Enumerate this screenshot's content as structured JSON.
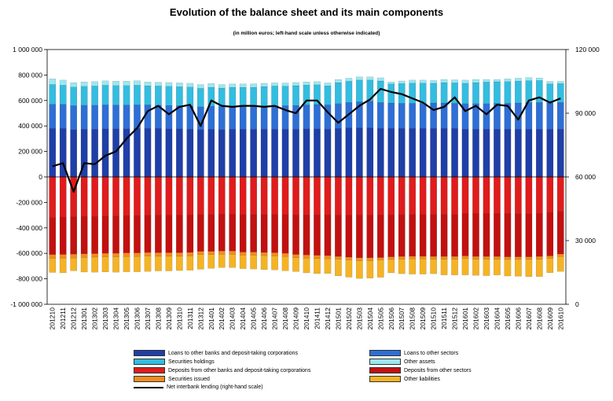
{
  "title": "Evolution of the balance sheet and its main components",
  "subtitle": "(in million euros; left-hand scale unless otherwise indicated)",
  "chart_data": {
    "type": "bar",
    "stacked": true,
    "categories": [
      "201210",
      "201211",
      "201212",
      "201301",
      "201302",
      "201303",
      "201304",
      "201305",
      "201306",
      "201307",
      "201308",
      "201309",
      "201310",
      "201311",
      "201312",
      "201401",
      "201402",
      "201403",
      "201404",
      "201405",
      "201406",
      "201407",
      "201408",
      "201409",
      "201410",
      "201411",
      "201412",
      "201501",
      "201502",
      "201503",
      "201504",
      "201505",
      "201506",
      "201507",
      "201508",
      "201509",
      "201510",
      "201511",
      "201512",
      "201601",
      "201602",
      "201603",
      "201604",
      "201605",
      "201606",
      "201607",
      "201608",
      "201609",
      "201610"
    ],
    "ylim": [
      -1000000,
      1000000
    ],
    "yticks": [
      "1 000 000",
      "800 000",
      "600 000",
      "400 000",
      "200 000",
      "0",
      "-200 000",
      "-400 000",
      "-600 000",
      "-800 000",
      "-1 000 000"
    ],
    "y2lim": [
      0,
      120000
    ],
    "y2ticks": [
      "120 000",
      "90 000",
      "60 000",
      "30 000",
      "0"
    ],
    "grid": false,
    "legend_position": "bottom",
    "series": [
      {
        "name": "Loans to other banks and deposit-taking  corporations",
        "color": "#1f3fa8",
        "stack": "assets",
        "values": [
          380000,
          380000,
          370000,
          375000,
          375000,
          378000,
          378000,
          378000,
          380000,
          380000,
          380000,
          378000,
          378000,
          375000,
          370000,
          375000,
          372000,
          375000,
          375000,
          375000,
          375000,
          375000,
          375000,
          375000,
          378000,
          378000,
          375000,
          380000,
          385000,
          385000,
          385000,
          380000,
          380000,
          380000,
          380000,
          380000,
          380000,
          380000,
          380000,
          375000,
          375000,
          375000,
          375000,
          375000,
          375000,
          375000,
          375000,
          375000,
          375000
        ]
      },
      {
        "name": "Loans to other sectors",
        "color": "#2e6fd6",
        "stack": "assets",
        "values": [
          190000,
          190000,
          190000,
          188000,
          188000,
          188000,
          186000,
          186000,
          185000,
          185000,
          183000,
          183000,
          182000,
          182000,
          180000,
          180000,
          180000,
          180000,
          180000,
          180000,
          182000,
          183000,
          185000,
          186000,
          188000,
          190000,
          190000,
          195000,
          200000,
          205000,
          210000,
          205000,
          200000,
          198000,
          198000,
          198000,
          200000,
          200000,
          198000,
          200000,
          200000,
          200000,
          202000,
          203000,
          205000,
          208000,
          210000,
          205000,
          210000
        ]
      },
      {
        "name": "Securities holdings",
        "color": "#33bde0",
        "stack": "assets",
        "values": [
          155000,
          150000,
          145000,
          148000,
          150000,
          153000,
          153000,
          153000,
          155000,
          150000,
          150000,
          150000,
          148000,
          148000,
          145000,
          148000,
          145000,
          148000,
          148000,
          148000,
          152000,
          155000,
          152000,
          155000,
          155000,
          155000,
          150000,
          165000,
          165000,
          170000,
          165000,
          168000,
          150000,
          155000,
          158000,
          158000,
          155000,
          160000,
          160000,
          160000,
          165000,
          170000,
          170000,
          170000,
          172000,
          172000,
          172000,
          150000,
          148000
        ]
      },
      {
        "name": "Other assets",
        "color": "#9ce7f0",
        "stack": "assets",
        "values": [
          45000,
          40000,
          35000,
          35000,
          35000,
          35000,
          35000,
          35000,
          35000,
          30000,
          30000,
          30000,
          30000,
          30000,
          30000,
          30000,
          28000,
          27000,
          27000,
          28000,
          26000,
          25000,
          25000,
          25000,
          25000,
          25000,
          23000,
          25000,
          25000,
          25000,
          25000,
          25000,
          15000,
          20000,
          24000,
          24000,
          22000,
          25000,
          24000,
          25000,
          25000,
          20000,
          18000,
          22000,
          23000,
          25000,
          20000,
          20000,
          17000
        ]
      },
      {
        "name": "Deposits from other banks and deposit-taking  corporations",
        "color": "#e01b1b",
        "stack": "liabilities",
        "values": [
          -320000,
          -318000,
          -315000,
          -312000,
          -310000,
          -308000,
          -308000,
          -305000,
          -305000,
          -302000,
          -300000,
          -300000,
          -300000,
          -298000,
          -295000,
          -295000,
          -292000,
          -292000,
          -295000,
          -295000,
          -295000,
          -295000,
          -295000,
          -298000,
          -298000,
          -298000,
          -298000,
          -300000,
          -300000,
          -300000,
          -300000,
          -298000,
          -298000,
          -295000,
          -295000,
          -295000,
          -295000,
          -295000,
          -295000,
          -290000,
          -290000,
          -290000,
          -290000,
          -290000,
          -288000,
          -288000,
          -285000,
          -280000,
          -270000
        ]
      },
      {
        "name": "Deposits from other sectors",
        "color": "#c21010",
        "stack": "liabilities",
        "values": [
          -290000,
          -290000,
          -292000,
          -292000,
          -292000,
          -292000,
          -292000,
          -292000,
          -292000,
          -292000,
          -295000,
          -295000,
          -295000,
          -295000,
          -290000,
          -290000,
          -290000,
          -290000,
          -295000,
          -295000,
          -298000,
          -300000,
          -305000,
          -310000,
          -315000,
          -318000,
          -320000,
          -325000,
          -330000,
          -335000,
          -335000,
          -335000,
          -330000,
          -330000,
          -328000,
          -328000,
          -330000,
          -330000,
          -330000,
          -330000,
          -335000,
          -335000,
          -335000,
          -338000,
          -340000,
          -340000,
          -340000,
          -340000,
          -335000
        ]
      },
      {
        "name": "Securities issued",
        "color": "#f28c1e",
        "stack": "liabilities",
        "values": [
          -30000,
          -30000,
          -30000,
          -28000,
          -28000,
          -28000,
          -28000,
          -28000,
          -28000,
          -28000,
          -28000,
          -28000,
          -28000,
          -28000,
          -25000,
          -25000,
          -25000,
          -25000,
          -25000,
          -25000,
          -25000,
          -25000,
          -25000,
          -25000,
          -25000,
          -25000,
          -25000,
          -22000,
          -22000,
          -22000,
          -22000,
          -20000,
          -20000,
          -20000,
          -20000,
          -20000,
          -20000,
          -20000,
          -20000,
          -20000,
          -20000,
          -20000,
          -20000,
          -20000,
          -20000,
          -20000,
          -20000,
          -20000,
          -20000
        ]
      },
      {
        "name": "Other liabilities",
        "color": "#f5b324",
        "stack": "liabilities",
        "values": [
          -110000,
          -115000,
          -100000,
          -115000,
          -118000,
          -118000,
          -120000,
          -120000,
          -120000,
          -120000,
          -115000,
          -115000,
          -112000,
          -112000,
          -115000,
          -108000,
          -105000,
          -105000,
          -105000,
          -108000,
          -110000,
          -110000,
          -112000,
          -110000,
          -115000,
          -118000,
          -115000,
          -130000,
          -135000,
          -140000,
          -138000,
          -135000,
          -105000,
          -115000,
          -120000,
          -120000,
          -115000,
          -125000,
          -125000,
          -130000,
          -128000,
          -130000,
          -125000,
          -130000,
          -132000,
          -135000,
          -137000,
          -112000,
          -117000
        ]
      },
      {
        "name": "Net interbank lending  (right-hand scale)",
        "color": "#000000",
        "type": "line",
        "axis": "right",
        "values": [
          65000,
          66500,
          53000,
          66500,
          66000,
          70000,
          72000,
          78000,
          83000,
          91000,
          93500,
          89500,
          93000,
          94000,
          84000,
          96000,
          93500,
          93000,
          93500,
          93500,
          93000,
          93500,
          91500,
          90000,
          96000,
          96000,
          90500,
          85500,
          89500,
          93500,
          96500,
          101500,
          100000,
          99000,
          97000,
          95000,
          91500,
          93000,
          97500,
          91000,
          93500,
          89500,
          94000,
          93500,
          87000,
          96000,
          97500,
          95000,
          97000
        ]
      }
    ]
  },
  "colors": {
    "axis": "#000000",
    "background": "#ffffff"
  }
}
